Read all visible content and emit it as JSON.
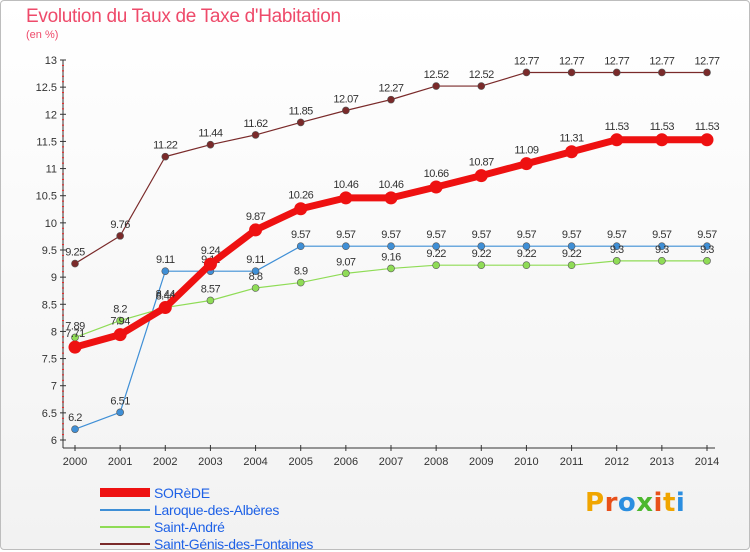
{
  "header": {
    "title": "Evolution du Taux de Taxe d'Habitation",
    "unit": "(en %)"
  },
  "logo": {
    "letters": [
      "P",
      "r",
      "o",
      "x",
      "i",
      "t",
      "i"
    ],
    "colors": [
      "#f0a500",
      "#e8501a",
      "#2b8ee0",
      "#4cb82e",
      "#e8501a",
      "#f0a500",
      "#2b8ee0"
    ]
  },
  "chart_data": {
    "type": "line",
    "title": "Evolution du Taux de Taxe d'Habitation",
    "ylabel": "(en %)",
    "xlabel": "",
    "x": [
      "2000",
      "2001",
      "2002",
      "2003",
      "2004",
      "2005",
      "2006",
      "2007",
      "2008",
      "2009",
      "2010",
      "2011",
      "2012",
      "2013",
      "2014"
    ],
    "ylim": [
      6,
      13
    ],
    "yticks": [
      "6",
      "6.5",
      "7",
      "7.5",
      "8",
      "8.5",
      "9",
      "9.5",
      "10",
      "10.5",
      "11",
      "11.5",
      "12",
      "12.5",
      "13"
    ],
    "grid": false,
    "legend_position": "bottom-left",
    "series": [
      {
        "name": "Saint-Génis-des-Fontaines",
        "color": "#7a2a2a",
        "width": 1.2,
        "values": [
          9.25,
          9.76,
          11.22,
          11.44,
          11.62,
          11.85,
          12.07,
          12.27,
          12.52,
          12.52,
          12.77,
          12.77,
          12.77,
          12.77,
          12.77
        ],
        "labels": [
          "9.25",
          "9.76",
          "11.22",
          "11.44",
          "11.62",
          "11.85",
          "12.07",
          "12.27",
          "12.52",
          "12.52",
          "12.77",
          "12.77",
          "12.77",
          "12.77",
          "12.77"
        ]
      },
      {
        "name": "Laroque-des-Albères",
        "color": "#3f8fd6",
        "width": 1.2,
        "values": [
          6.2,
          6.51,
          9.11,
          9.11,
          9.11,
          9.57,
          9.57,
          9.57,
          9.57,
          9.57,
          9.57,
          9.57,
          9.57,
          9.57,
          9.57
        ],
        "labels": [
          "6.2",
          "6.51",
          "9.11",
          "9.11",
          "9.11",
          "9.57",
          "9.57",
          "9.57",
          "9.57",
          "9.57",
          "9.57",
          "9.57",
          "9.57",
          "9.57",
          "9.57"
        ]
      },
      {
        "name": "Saint-André",
        "color": "#8fdc56",
        "width": 1.2,
        "values": [
          7.89,
          8.2,
          8.44,
          8.57,
          8.8,
          8.9,
          9.07,
          9.16,
          9.22,
          9.22,
          9.22,
          9.22,
          9.3,
          9.3,
          9.3
        ],
        "labels": [
          "7.89",
          "8.2",
          "8.44",
          "8.57",
          "8.8",
          "8.9",
          "9.07",
          "9.16",
          "9.22",
          "9.22",
          "9.22",
          "9.22",
          "9.3",
          "9.3",
          "9.3"
        ]
      },
      {
        "name": "SORèDE",
        "color": "#ee1111",
        "width": 7,
        "values": [
          7.71,
          7.94,
          8.44,
          9.24,
          9.87,
          10.26,
          10.46,
          10.46,
          10.66,
          10.87,
          11.09,
          11.31,
          11.53,
          11.53,
          11.53
        ],
        "labels": [
          "7.71",
          "7.94",
          "8.44",
          "9.24",
          "9.87",
          "10.26",
          "10.46",
          "10.46",
          "10.66",
          "10.87",
          "11.09",
          "11.31",
          "11.53",
          "11.53",
          "11.53"
        ]
      }
    ],
    "legend_order": [
      "SORèDE",
      "Laroque-des-Albères",
      "Saint-André",
      "Saint-Génis-des-Fontaines"
    ]
  }
}
